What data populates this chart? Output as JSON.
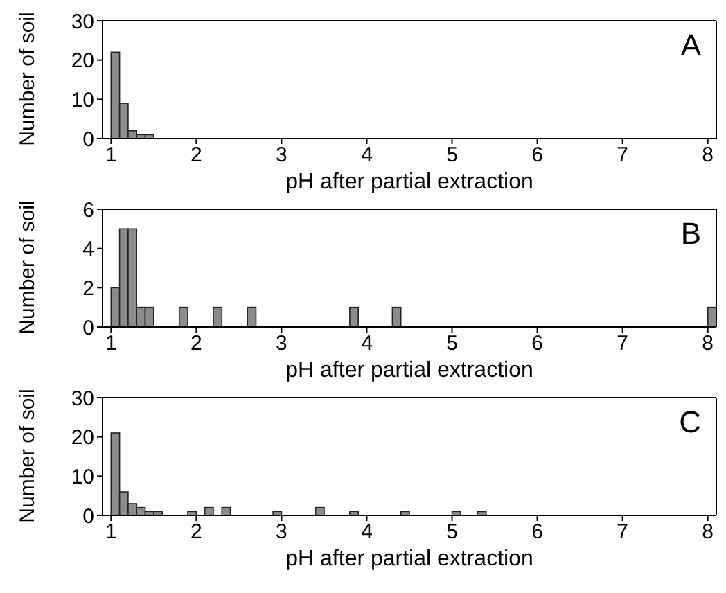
{
  "chart_data": [
    {
      "type": "histogram",
      "xlabel": "pH after partial extraction",
      "ylabel": "Number of soil",
      "annotations": [
        "A"
      ],
      "color": "#8c8c8c",
      "xlim": [
        0.9,
        8.1
      ],
      "xticks": [
        1,
        2,
        3,
        4,
        5,
        6,
        7,
        8
      ],
      "ylim": [
        0,
        30
      ],
      "yticks": [
        0,
        10,
        20,
        30
      ],
      "bins": [
        0.9,
        1.0,
        1.1,
        1.2,
        1.3,
        1.4,
        1.5,
        1.6,
        1.7,
        1.8,
        1.9,
        2.0,
        2.1,
        2.2,
        2.3,
        2.4,
        2.5,
        2.6,
        2.7,
        2.8,
        2.9,
        3.0,
        3.1,
        3.2,
        3.3,
        3.4,
        3.5,
        3.6,
        3.7,
        3.8,
        3.9,
        4.0,
        4.1,
        4.2,
        4.3,
        4.4,
        4.5,
        4.6,
        4.7,
        4.8,
        4.9,
        5.0,
        5.1,
        5.2,
        5.3,
        5.4,
        5.5,
        5.6,
        5.7,
        5.8,
        5.9,
        6.0,
        6.1,
        6.2,
        6.3,
        6.4,
        6.5,
        6.6,
        6.7,
        6.8,
        6.9,
        7.0,
        7.1,
        7.2,
        7.3,
        7.4,
        7.5,
        7.6,
        7.7,
        7.8,
        7.9,
        8.0,
        8.1
      ],
      "values": [
        0,
        22,
        9,
        2,
        1,
        1,
        0,
        0,
        0,
        0,
        0,
        0,
        0,
        0,
        0,
        0,
        0,
        0,
        0,
        0,
        0,
        0,
        0,
        0,
        0,
        0,
        0,
        0,
        0,
        0,
        0,
        0,
        0,
        0,
        0,
        0,
        0,
        0,
        0,
        0,
        0,
        0,
        0,
        0,
        0,
        0,
        0,
        0,
        0,
        0,
        0,
        0,
        0,
        0,
        0,
        0,
        0,
        0,
        0,
        0,
        0,
        0,
        0,
        0,
        0,
        0,
        0,
        0,
        0,
        0,
        0,
        0
      ]
    },
    {
      "type": "histogram",
      "xlabel": "pH after partial extraction",
      "ylabel": "Number of soil",
      "annotations": [
        "B"
      ],
      "color": "#8c8c8c",
      "xlim": [
        0.9,
        8.1
      ],
      "xticks": [
        1,
        2,
        3,
        4,
        5,
        6,
        7,
        8
      ],
      "ylim": [
        0,
        6
      ],
      "yticks": [
        0,
        2,
        4,
        6
      ],
      "bins": [
        0.9,
        1.0,
        1.1,
        1.2,
        1.3,
        1.4,
        1.5,
        1.6,
        1.7,
        1.8,
        1.9,
        2.0,
        2.1,
        2.2,
        2.3,
        2.4,
        2.5,
        2.6,
        2.7,
        2.8,
        2.9,
        3.0,
        3.1,
        3.2,
        3.3,
        3.4,
        3.5,
        3.6,
        3.7,
        3.8,
        3.9,
        4.0,
        4.1,
        4.2,
        4.3,
        4.4,
        4.5,
        4.6,
        4.7,
        4.8,
        4.9,
        5.0,
        5.1,
        5.2,
        5.3,
        5.4,
        5.5,
        5.6,
        5.7,
        5.8,
        5.9,
        6.0,
        6.1,
        6.2,
        6.3,
        6.4,
        6.5,
        6.6,
        6.7,
        6.8,
        6.9,
        7.0,
        7.1,
        7.2,
        7.3,
        7.4,
        7.5,
        7.6,
        7.7,
        7.8,
        7.9,
        8.0,
        8.1
      ],
      "values": [
        0,
        2,
        5,
        5,
        1,
        1,
        0,
        0,
        0,
        1,
        0,
        0,
        0,
        1,
        0,
        0,
        0,
        1,
        0,
        0,
        0,
        0,
        0,
        0,
        0,
        0,
        0,
        0,
        0,
        1,
        0,
        0,
        0,
        0,
        1,
        0,
        0,
        0,
        0,
        0,
        0,
        0,
        0,
        0,
        0,
        0,
        0,
        0,
        0,
        0,
        0,
        0,
        0,
        0,
        0,
        0,
        0,
        0,
        0,
        0,
        0,
        0,
        0,
        0,
        0,
        0,
        0,
        0,
        0,
        0,
        0,
        1
      ]
    },
    {
      "type": "histogram",
      "xlabel": "pH after partial extraction",
      "ylabel": "Number of soil",
      "annotations": [
        "C"
      ],
      "color": "#8c8c8c",
      "xlim": [
        0.9,
        8.1
      ],
      "xticks": [
        1,
        2,
        3,
        4,
        5,
        6,
        7,
        8
      ],
      "ylim": [
        0,
        30
      ],
      "yticks": [
        0,
        10,
        20,
        30
      ],
      "bins": [
        0.9,
        1.0,
        1.1,
        1.2,
        1.3,
        1.4,
        1.5,
        1.6,
        1.7,
        1.8,
        1.9,
        2.0,
        2.1,
        2.2,
        2.3,
        2.4,
        2.5,
        2.6,
        2.7,
        2.8,
        2.9,
        3.0,
        3.1,
        3.2,
        3.3,
        3.4,
        3.5,
        3.6,
        3.7,
        3.8,
        3.9,
        4.0,
        4.1,
        4.2,
        4.3,
        4.4,
        4.5,
        4.6,
        4.7,
        4.8,
        4.9,
        5.0,
        5.1,
        5.2,
        5.3,
        5.4,
        5.5,
        5.6,
        5.7,
        5.8,
        5.9,
        6.0,
        6.1,
        6.2,
        6.3,
        6.4,
        6.5,
        6.6,
        6.7,
        6.8,
        6.9,
        7.0,
        7.1,
        7.2,
        7.3,
        7.4,
        7.5,
        7.6,
        7.7,
        7.8,
        7.9,
        8.0,
        8.1
      ],
      "values": [
        0,
        21,
        6,
        3,
        2,
        1,
        1,
        0,
        0,
        0,
        1,
        0,
        2,
        0,
        2,
        0,
        0,
        0,
        0,
        0,
        1,
        0,
        0,
        0,
        0,
        2,
        0,
        0,
        0,
        1,
        0,
        0,
        0,
        0,
        0,
        1,
        0,
        0,
        0,
        0,
        0,
        1,
        0,
        0,
        1,
        0,
        0,
        0,
        0,
        0,
        0,
        0,
        0,
        0,
        0,
        0,
        0,
        0,
        0,
        0,
        0,
        0,
        0,
        0,
        0,
        0,
        0,
        0,
        0,
        0,
        0,
        0
      ]
    }
  ]
}
